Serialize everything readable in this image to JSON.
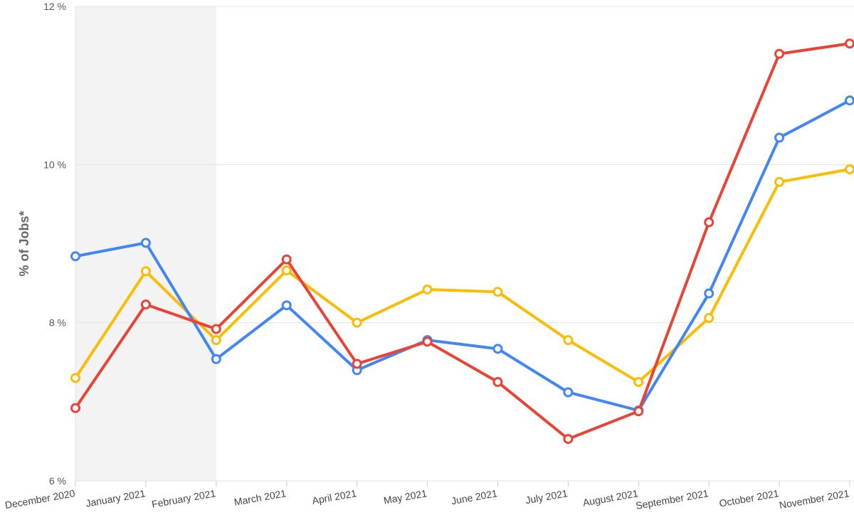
{
  "chart_data": {
    "type": "line",
    "title": "",
    "xlabel": "",
    "ylabel": "% of Jobs*",
    "ylim": [
      6,
      12
    ],
    "y_ticks": [
      6,
      8,
      10,
      12
    ],
    "y_tick_labels": [
      "6 %",
      "8 %",
      "10 %",
      "12 %"
    ],
    "grid": true,
    "legend": "none",
    "categories": [
      "December 2020",
      "January 2021",
      "February 2021",
      "March 2021",
      "April 2021",
      "May 2021",
      "June 2021",
      "July 2021",
      "August 2021",
      "September 2021",
      "October 2021",
      "November 2021"
    ],
    "highlight_range": [
      "December 2020",
      "February 2021"
    ],
    "highlight_color": "#f3f3f3",
    "series": [
      {
        "color": "#fbbc04",
        "values": [
          7.3,
          8.65,
          7.78,
          8.66,
          8.0,
          8.42,
          8.39,
          7.78,
          7.25,
          8.06,
          9.78,
          9.94
        ]
      },
      {
        "color": "#4285f4",
        "values": [
          8.84,
          9.01,
          7.54,
          8.22,
          7.4,
          7.78,
          7.67,
          7.12,
          6.89,
          8.37,
          10.34,
          10.81
        ]
      },
      {
        "color": "#ea4335",
        "values": [
          6.92,
          8.23,
          7.92,
          8.8,
          7.48,
          7.76,
          7.25,
          6.53,
          6.88,
          9.27,
          11.4,
          11.53
        ]
      }
    ]
  }
}
